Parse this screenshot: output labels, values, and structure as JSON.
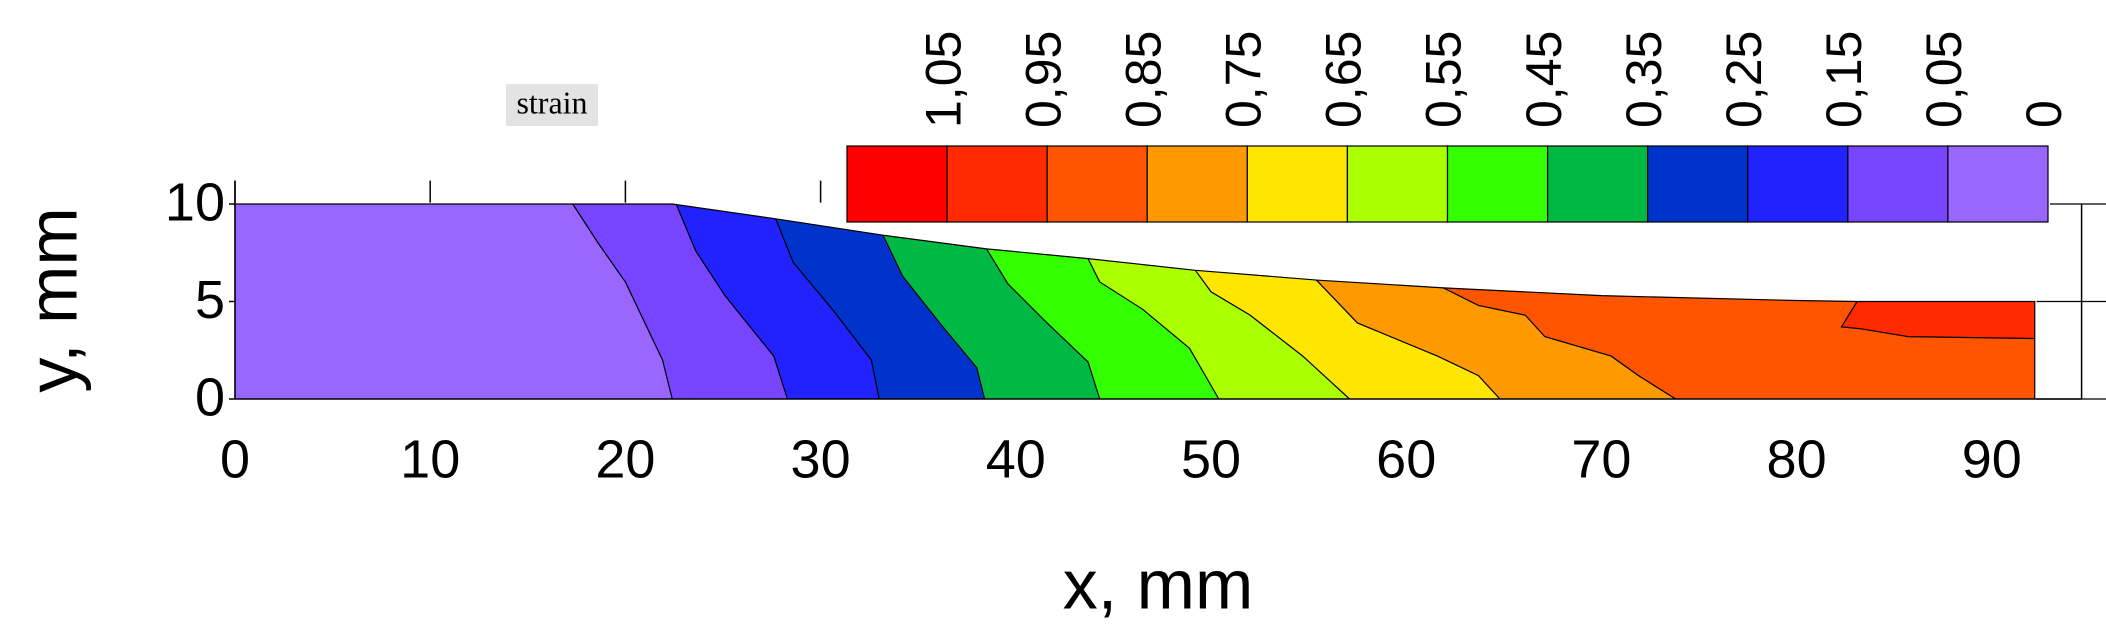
{
  "chart_data": {
    "type": "contour",
    "xlabel": "x, mm",
    "ylabel": "y, mm",
    "annotation": "strain",
    "xlim": [
      0,
      94.6
    ],
    "ylim": [
      0,
      11.2
    ],
    "xticks": [
      0,
      10,
      20,
      30,
      40,
      50,
      60,
      70,
      80,
      90
    ],
    "yticks": [
      0,
      5,
      10
    ],
    "outline": {
      "x": [
        0,
        0,
        22.4,
        27.7,
        33.2,
        38.5,
        43.7,
        49.2,
        55.4,
        61.9,
        70,
        80,
        83.1,
        92.2,
        92.2
      ],
      "y": [
        0,
        10,
        10,
        9.24,
        8.4,
        7.7,
        7.2,
        6.6,
        6.1,
        5.7,
        5.3,
        5.05,
        5.0,
        5.0,
        0
      ]
    },
    "contours": [
      {
        "level": 0.05,
        "x": [
          17.3,
          18.6,
          20.0,
          21.9,
          22.4
        ],
        "y": [
          10,
          8,
          6,
          2,
          0
        ]
      },
      {
        "level": 0.15,
        "x": [
          22.6,
          23.6,
          25.1,
          27.6,
          28.3
        ],
        "y": [
          10,
          7.6,
          5.3,
          2.2,
          0
        ]
      },
      {
        "level": 0.25,
        "x": [
          27.7,
          28.6,
          30.6,
          32.6,
          33.0
        ],
        "y": [
          9.24,
          7.0,
          4.6,
          2.0,
          0
        ]
      },
      {
        "level": 0.35,
        "x": [
          33.2,
          34.2,
          36.1,
          38.0,
          38.4
        ],
        "y": [
          8.4,
          6.3,
          3.9,
          1.6,
          0
        ]
      },
      {
        "level": 0.45,
        "x": [
          38.5,
          39.6,
          41.6,
          43.7,
          44.3
        ],
        "y": [
          7.7,
          5.9,
          3.9,
          1.9,
          0
        ]
      },
      {
        "level": 0.55,
        "x": [
          43.7,
          44.3,
          46.5,
          48.9,
          50.4
        ],
        "y": [
          7.2,
          6.0,
          4.6,
          2.6,
          0
        ]
      },
      {
        "level": 0.65,
        "x": [
          49.2,
          50.0,
          52.0,
          54.7,
          57.1
        ],
        "y": [
          6.6,
          5.5,
          4.3,
          2.2,
          0
        ]
      },
      {
        "level": 0.75,
        "x": [
          55.4,
          57.5,
          61.6,
          63.7,
          64.8
        ],
        "y": [
          6.1,
          3.9,
          2.2,
          1.2,
          0
        ]
      },
      {
        "level": 0.85,
        "x": [
          61.9,
          63.7,
          66.1,
          67.1,
          70.5,
          71.9,
          73.8
        ],
        "y": [
          5.7,
          4.8,
          4.3,
          3.2,
          2.2,
          1.2,
          0
        ]
      },
      {
        "level": 0.95,
        "x": [
          83.1,
          82.3,
          83.3,
          85.7,
          92.2
        ],
        "y": [
          5.0,
          3.7,
          3.6,
          3.2,
          3.1
        ]
      }
    ],
    "colorbar": {
      "colors": [
        "#ff0000",
        "#ff2a00",
        "#ff5500",
        "#ff9900",
        "#ffe600",
        "#aaff00",
        "#33ff00",
        "#00b844",
        "#0033cc",
        "#2222ff",
        "#7744ff",
        "#9966ff"
      ],
      "ticks": [
        {
          "value": 1.05,
          "label": "1,05"
        },
        {
          "value": 0.95,
          "label": "0,95"
        },
        {
          "value": 0.85,
          "label": "0,85"
        },
        {
          "value": 0.75,
          "label": "0,75"
        },
        {
          "value": 0.65,
          "label": "0,65"
        },
        {
          "value": 0.55,
          "label": "0,55"
        },
        {
          "value": 0.45,
          "label": "0,45"
        },
        {
          "value": 0.35,
          "label": "0,35"
        },
        {
          "value": 0.25,
          "label": "0,25"
        },
        {
          "value": 0.15,
          "label": "0,15"
        },
        {
          "value": 0.05,
          "label": "0,05"
        },
        0
      ]
    }
  }
}
